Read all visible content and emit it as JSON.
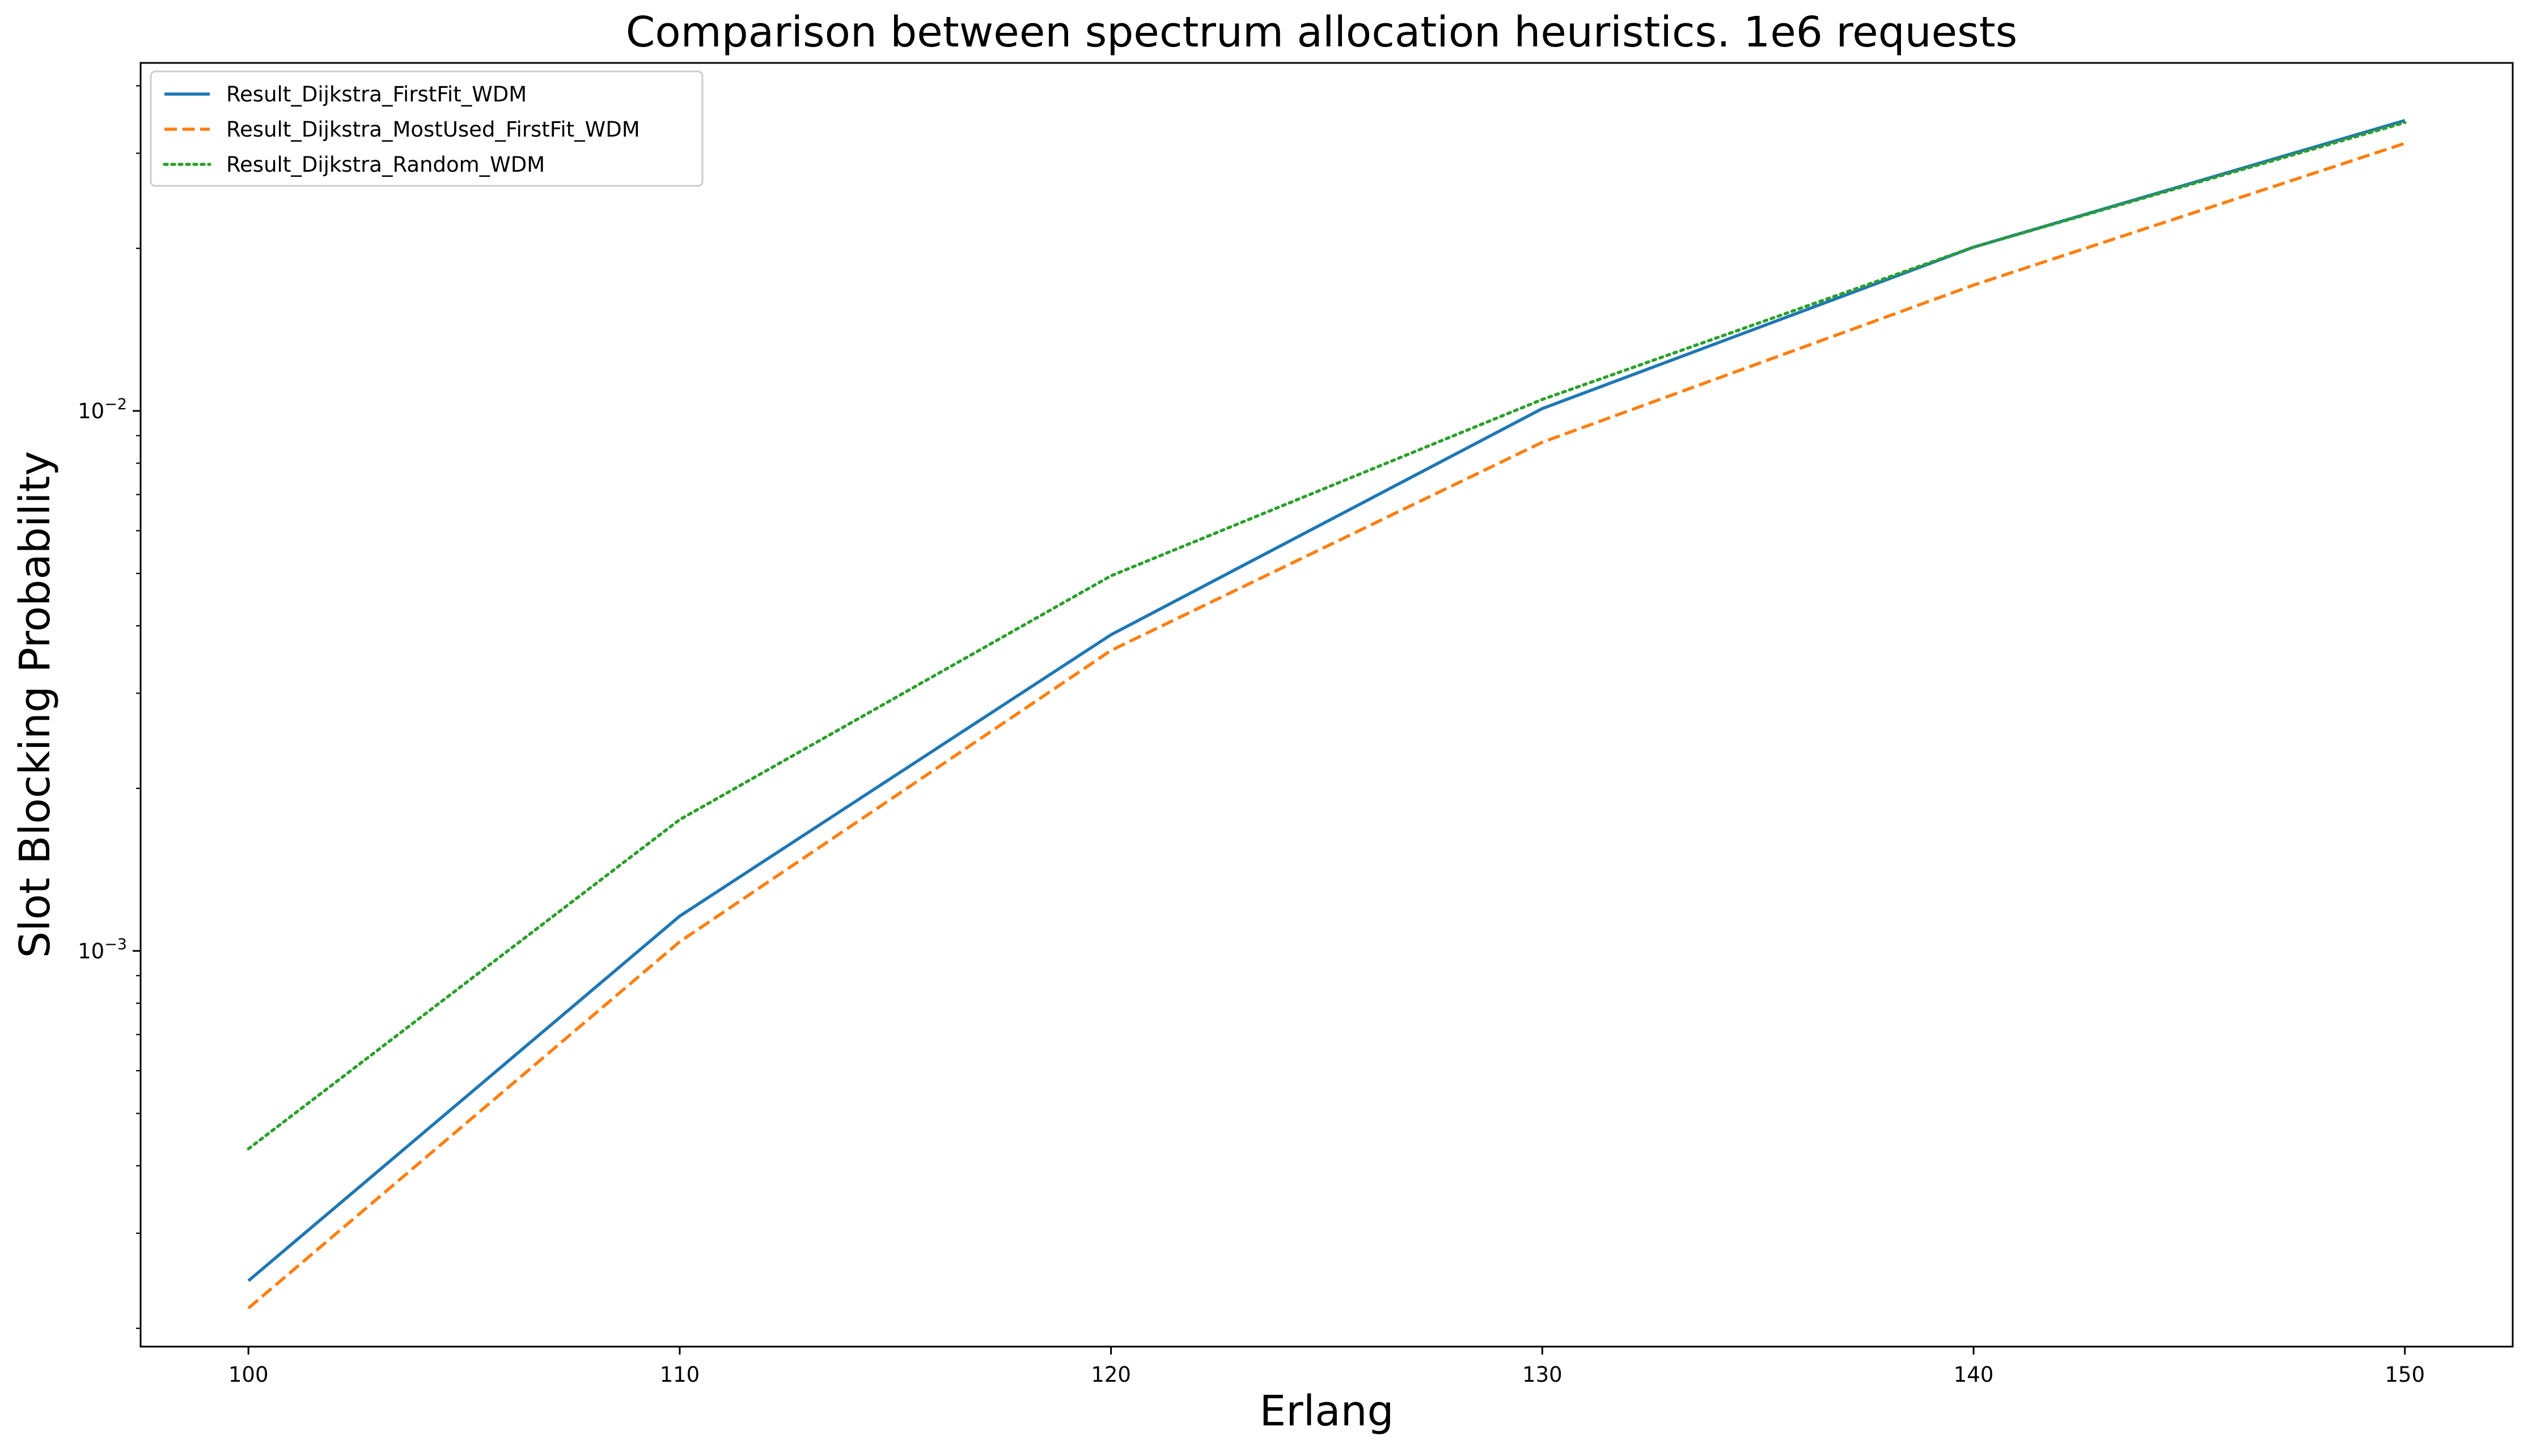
{
  "chart_data": {
    "type": "line",
    "title": "Comparison between spectrum allocation heuristics. 1e6 requests",
    "xlabel": "Erlang",
    "ylabel": "Slot Blocking Probability",
    "yscale": "log",
    "xlim": [
      97.5,
      152.5
    ],
    "ylim": [
      0.000185,
      0.0441
    ],
    "x": [
      100,
      110,
      120,
      130,
      140,
      150
    ],
    "x_ticks": [
      100,
      110,
      120,
      130,
      140,
      150
    ],
    "x_tick_labels": [
      "100",
      "110",
      "120",
      "130",
      "140",
      "150"
    ],
    "y_major_ticks": [
      {
        "value": 0.001,
        "base": "10",
        "exp": "−3"
      },
      {
        "value": 0.01,
        "base": "10",
        "exp": "−2"
      }
    ],
    "grid": false,
    "legend_position": "upper-left",
    "series": [
      {
        "name": "Result_Dijkstra_FirstFit_WDM",
        "color": "#1f77b4",
        "style": "solid",
        "values": [
          0.000245,
          0.00116,
          0.00385,
          0.0101,
          0.0201,
          0.0345
        ]
      },
      {
        "name": "Result_Dijkstra_MostUsed_FirstFit_WDM",
        "color": "#ff7f0e",
        "style": "dashed",
        "values": [
          0.000218,
          0.00104,
          0.0036,
          0.00875,
          0.0171,
          0.0313
        ]
      },
      {
        "name": "Result_Dijkstra_Random_WDM",
        "color": "#2ca02c",
        "style": "dotted",
        "values": [
          0.00043,
          0.00175,
          0.00495,
          0.0105,
          0.0201,
          0.0342
        ]
      }
    ]
  }
}
